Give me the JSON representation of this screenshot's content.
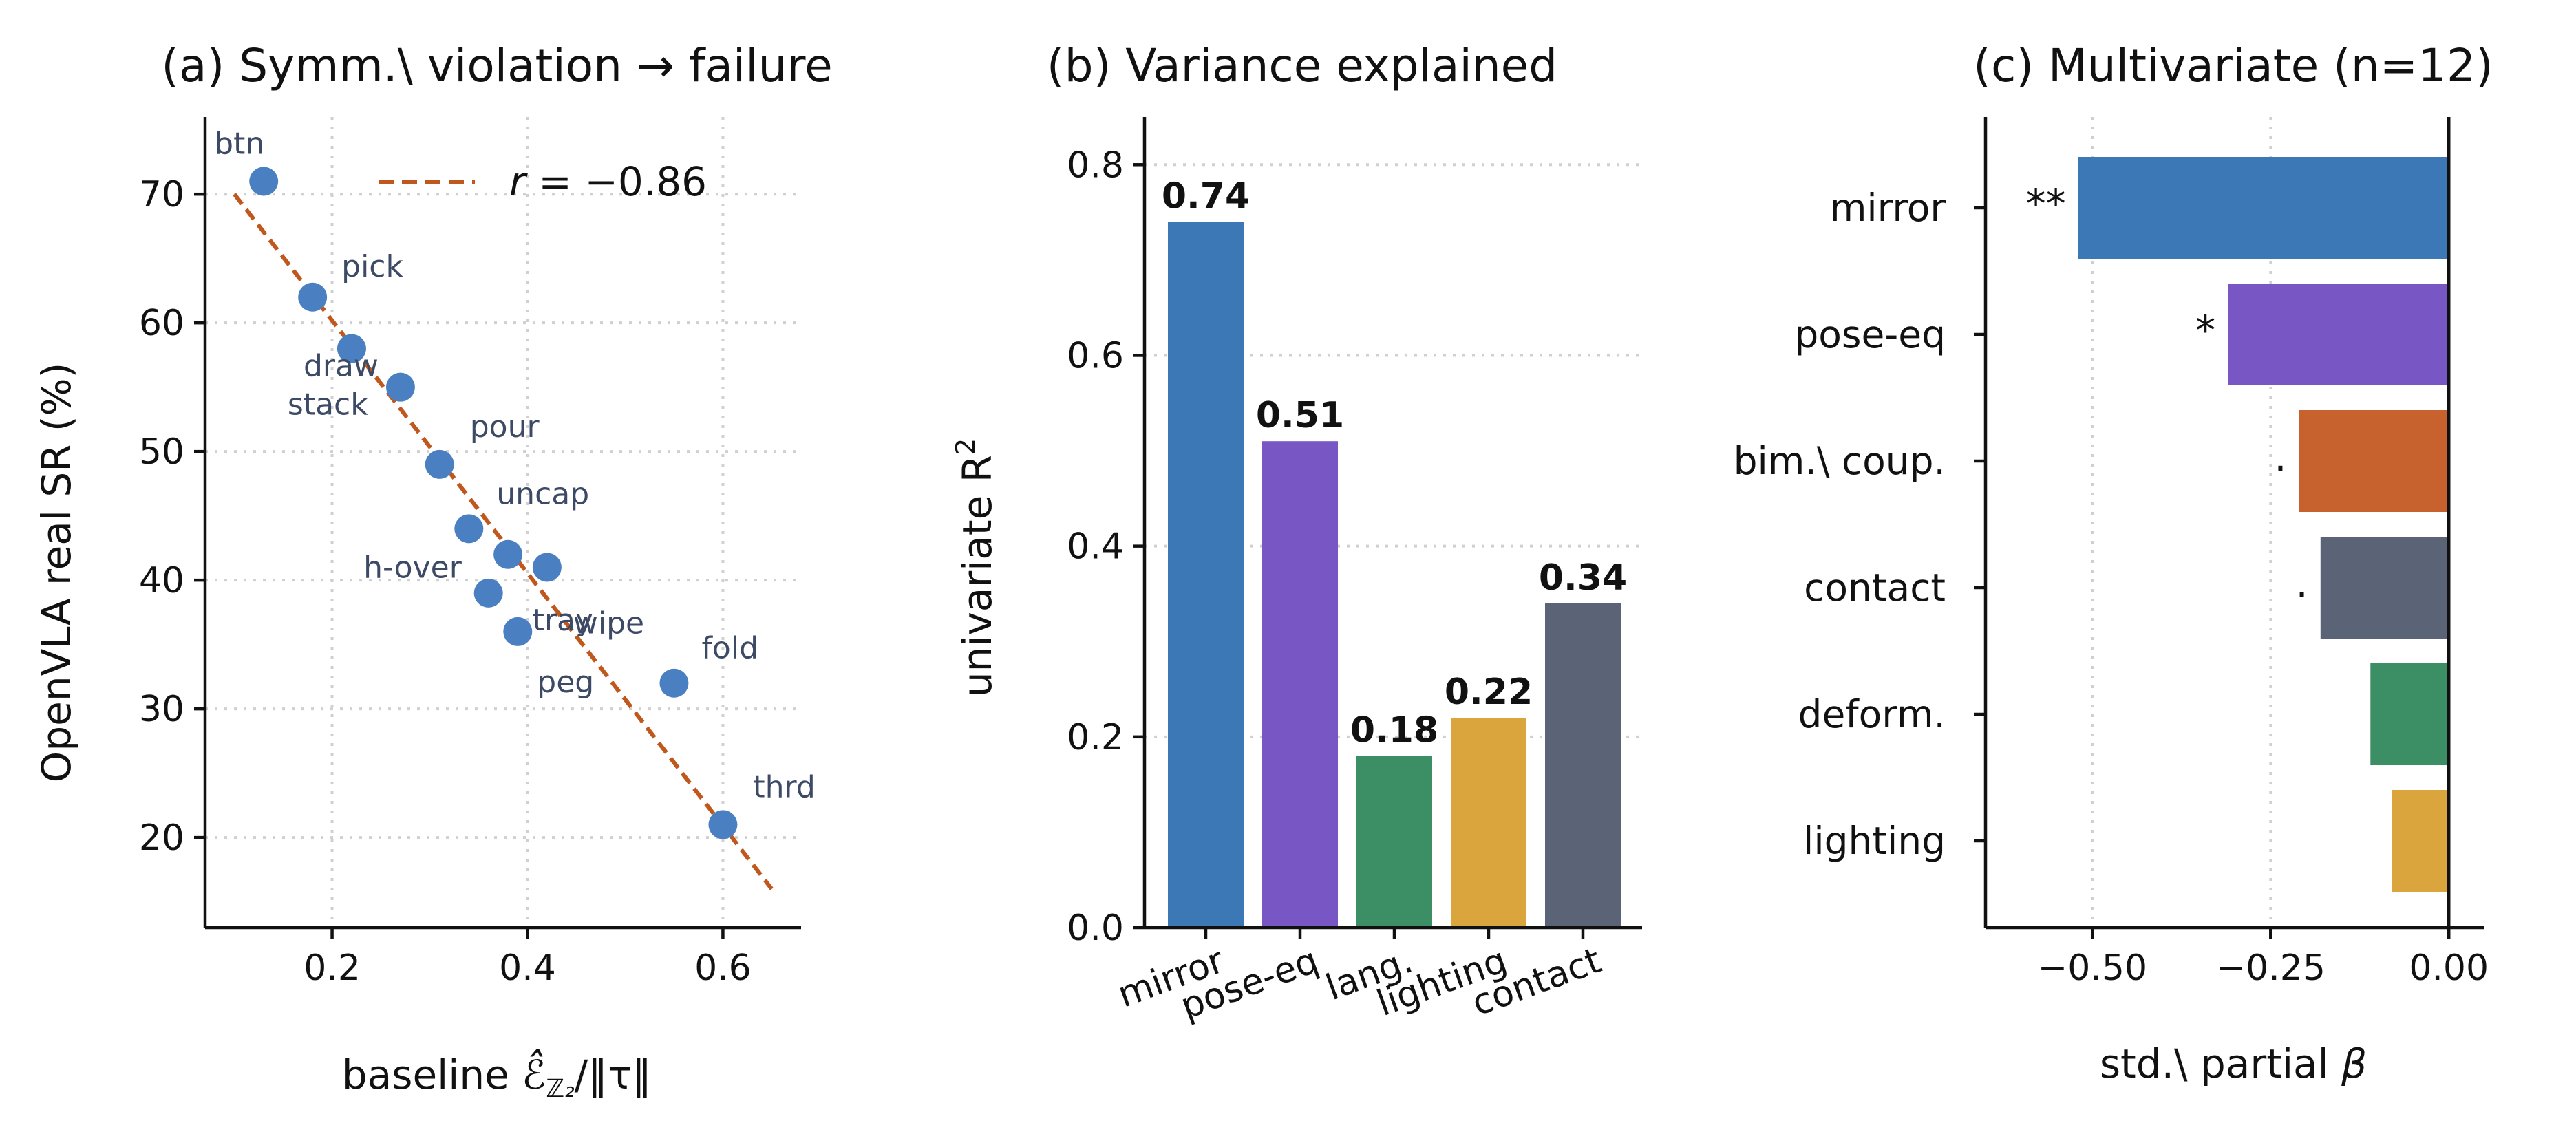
{
  "chart_data": [
    {
      "type": "scatter",
      "title": "(a) Symm.\\ violation → failure",
      "xlabel_prefix": "baseline ",
      "xlabel_math": "ℰ̂",
      "xlabel_sub": "ℤ₂",
      "xlabel_suffix": "/‖τ‖",
      "ylabel": "OpenVLA real SR (%)",
      "xlim": [
        0.07,
        0.68
      ],
      "ylim": [
        13,
        76
      ],
      "xticks": [
        0.2,
        0.4,
        0.6
      ],
      "xtick_labels": [
        "0.2",
        "0.4",
        "0.6"
      ],
      "yticks": [
        20,
        30,
        40,
        50,
        60,
        70
      ],
      "ytick_labels": [
        "20",
        "30",
        "40",
        "50",
        "60",
        "70"
      ],
      "grid": true,
      "point_color": "#4a80c2",
      "points": [
        {
          "label": "btn",
          "x": 0.13,
          "y": 71
        },
        {
          "label": "pick",
          "x": 0.18,
          "y": 62
        },
        {
          "label": "draw",
          "x": 0.22,
          "y": 58
        },
        {
          "label": "stack",
          "x": 0.27,
          "y": 55
        },
        {
          "label": "pour",
          "x": 0.31,
          "y": 49
        },
        {
          "label": "uncap",
          "x": 0.34,
          "y": 44
        },
        {
          "label": "h-over",
          "x": 0.38,
          "y": 42
        },
        {
          "label": "wipe",
          "x": 0.42,
          "y": 41
        },
        {
          "label": "tray",
          "x": 0.36,
          "y": 39
        },
        {
          "label": "peg",
          "x": 0.39,
          "y": 36
        },
        {
          "label": "fold",
          "x": 0.55,
          "y": 32
        },
        {
          "label": "thrd",
          "x": 0.6,
          "y": 21
        }
      ],
      "fit_line": {
        "x": [
          0.1,
          0.65
        ],
        "y": [
          70,
          16
        ],
        "color": "#c0581e"
      },
      "legend": {
        "entry_prefix": "r = ",
        "entry_value": "−0.86",
        "placement": "top-right"
      }
    },
    {
      "type": "bar",
      "title": "(b) Variance explained",
      "ylabel": "univariate R",
      "ylabel_sup": "2",
      "categories": [
        "mirror",
        "pose-eq",
        "lang.",
        "lighting",
        "contact"
      ],
      "values": [
        0.74,
        0.51,
        0.18,
        0.22,
        0.34
      ],
      "value_labels": [
        "0.74",
        "0.51",
        "0.18",
        "0.22",
        "0.34"
      ],
      "colors": [
        "#3d78b6",
        "#7856c4",
        "#3c8f65",
        "#daa53c",
        "#5b6376"
      ],
      "ylim": [
        0,
        0.85
      ],
      "yticks": [
        0.0,
        0.2,
        0.4,
        0.6,
        0.8
      ],
      "ytick_labels": [
        "0.0",
        "0.2",
        "0.4",
        "0.6",
        "0.8"
      ],
      "grid": true
    },
    {
      "type": "bar",
      "orientation": "horizontal",
      "title": "(c) Multivariate (n=12)",
      "xlabel": "std.\\ partial ",
      "xlabel_math": "β",
      "categories": [
        "mirror",
        "pose-eq",
        "bim.\\ coup.",
        "contact",
        "deform.",
        "lighting"
      ],
      "values": [
        -0.52,
        -0.31,
        -0.21,
        -0.18,
        -0.11,
        -0.08
      ],
      "significance": [
        "**",
        "*",
        ".",
        ".",
        "",
        ""
      ],
      "colors": [
        "#3d78b6",
        "#7856c4",
        "#c7622f",
        "#5b6376",
        "#3c8f65",
        "#daa53c"
      ],
      "xlim": [
        -0.65,
        0.05
      ],
      "xticks": [
        -0.5,
        -0.25,
        0.0
      ],
      "xtick_labels": [
        "−0.50",
        "−0.25",
        "0.00"
      ],
      "grid": true
    }
  ]
}
